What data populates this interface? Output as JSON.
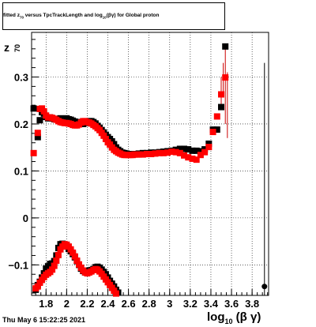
{
  "title": {
    "pre": "fitted  z",
    "sub": "70",
    "mid": "  versus TpcTrackLength and log",
    "sub2": "10",
    "post": "(βγ) for Global proton"
  },
  "timestamp": "Thu May  6 15:22:25 2021",
  "chart_data": {
    "type": "scatter",
    "title": "fitted z70 versus TpcTrackLength and log10(βγ) for Global proton",
    "xlabel": "log10(βγ)",
    "ylabel": "z70",
    "xlim": [
      1.66,
      3.96
    ],
    "ylim": [
      -0.165,
      0.395
    ],
    "grid": true,
    "x_ticks": [
      1.8,
      2.0,
      2.2,
      2.4,
      2.6,
      2.8,
      3.0,
      3.2,
      3.4,
      3.6,
      3.8
    ],
    "x_tick_labels": [
      "1.8",
      "2",
      "2.2",
      "2.4",
      "2.6",
      "2.8",
      "3",
      "3.2",
      "3.4",
      "3.6",
      "3.8"
    ],
    "y_ticks": [
      -0.1,
      0.0,
      0.1,
      0.2,
      0.3
    ],
    "y_tick_labels": [
      "−0.1",
      "0",
      "0.1",
      "0.2",
      "0.3"
    ],
    "series": [
      {
        "color": "#000000",
        "values": [
          [
            1.68,
            0.233
          ],
          [
            1.72,
            0.172
          ],
          [
            1.74,
            0.208
          ],
          [
            1.76,
            0.225
          ],
          [
            1.78,
            0.222
          ],
          [
            1.8,
            0.215
          ],
          [
            1.82,
            0.212
          ],
          [
            1.84,
            0.214
          ],
          [
            1.86,
            0.212
          ],
          [
            1.88,
            0.21
          ],
          [
            1.9,
            0.211
          ],
          [
            1.92,
            0.21
          ],
          [
            1.94,
            0.212
          ],
          [
            1.96,
            0.21
          ],
          [
            1.98,
            0.208
          ],
          [
            2.0,
            0.212
          ],
          [
            2.02,
            0.21
          ],
          [
            2.04,
            0.209
          ],
          [
            2.06,
            0.207
          ],
          [
            2.08,
            0.205
          ],
          [
            2.1,
            0.204
          ],
          [
            2.12,
            0.203
          ],
          [
            2.14,
            0.2
          ],
          [
            2.16,
            0.2
          ],
          [
            2.18,
            0.202
          ],
          [
            2.2,
            0.205
          ],
          [
            2.22,
            0.206
          ],
          [
            2.24,
            0.206
          ],
          [
            2.26,
            0.204
          ],
          [
            2.28,
            0.201
          ],
          [
            2.3,
            0.196
          ],
          [
            2.32,
            0.192
          ],
          [
            2.34,
            0.187
          ],
          [
            2.36,
            0.182
          ],
          [
            2.38,
            0.177
          ],
          [
            2.4,
            0.172
          ],
          [
            2.42,
            0.168
          ],
          [
            2.44,
            0.163
          ],
          [
            2.46,
            0.157
          ],
          [
            2.48,
            0.15
          ],
          [
            2.5,
            0.145
          ],
          [
            2.52,
            0.142
          ],
          [
            2.54,
            0.139
          ],
          [
            2.56,
            0.138
          ],
          [
            2.58,
            0.137
          ],
          [
            2.6,
            0.136
          ],
          [
            2.62,
            0.136
          ],
          [
            2.64,
            0.136
          ],
          [
            2.66,
            0.136
          ],
          [
            2.68,
            0.136
          ],
          [
            2.7,
            0.137
          ],
          [
            2.74,
            0.138
          ],
          [
            2.78,
            0.138
          ],
          [
            2.82,
            0.139
          ],
          [
            2.86,
            0.139
          ],
          [
            2.9,
            0.14
          ],
          [
            2.94,
            0.141
          ],
          [
            2.98,
            0.142
          ],
          [
            3.02,
            0.143
          ],
          [
            3.06,
            0.145
          ],
          [
            3.1,
            0.147
          ],
          [
            3.14,
            0.147
          ],
          [
            3.18,
            0.146
          ],
          [
            3.22,
            0.143
          ],
          [
            3.26,
            0.143
          ],
          [
            3.3,
            0.142
          ],
          [
            3.34,
            0.146
          ],
          [
            3.38,
            0.158
          ],
          [
            3.42,
            0.188
          ],
          [
            3.46,
            0.188
          ],
          [
            3.5,
            0.236
          ],
          [
            3.54,
            0.365
          ],
          [
            1.7,
            -0.153
          ],
          [
            1.72,
            -0.143
          ],
          [
            1.74,
            -0.136
          ],
          [
            1.76,
            -0.127
          ],
          [
            1.78,
            -0.118
          ],
          [
            1.8,
            -0.108
          ],
          [
            1.82,
            -0.103
          ],
          [
            1.84,
            -0.098
          ],
          [
            1.86,
            -0.097
          ],
          [
            1.88,
            -0.092
          ],
          [
            1.9,
            -0.08
          ],
          [
            1.92,
            -0.064
          ],
          [
            1.94,
            -0.056
          ],
          [
            1.96,
            -0.055
          ],
          [
            1.98,
            -0.058
          ],
          [
            2.0,
            -0.06
          ],
          [
            2.02,
            -0.066
          ],
          [
            2.04,
            -0.071
          ],
          [
            2.06,
            -0.077
          ],
          [
            2.08,
            -0.084
          ],
          [
            2.1,
            -0.092
          ],
          [
            2.12,
            -0.1
          ],
          [
            2.14,
            -0.108
          ],
          [
            2.16,
            -0.113
          ],
          [
            2.18,
            -0.116
          ],
          [
            2.2,
            -0.114
          ],
          [
            2.22,
            -0.112
          ],
          [
            2.24,
            -0.111
          ],
          [
            2.26,
            -0.109
          ],
          [
            2.28,
            -0.105
          ],
          [
            2.3,
            -0.104
          ],
          [
            2.32,
            -0.106
          ],
          [
            2.34,
            -0.11
          ],
          [
            2.36,
            -0.115
          ],
          [
            2.38,
            -0.12
          ],
          [
            2.4,
            -0.127
          ],
          [
            2.42,
            -0.134
          ],
          [
            2.44,
            -0.14
          ],
          [
            2.46,
            -0.146
          ],
          [
            2.48,
            -0.153
          ],
          [
            2.5,
            -0.159
          ],
          [
            3.92,
            -0.146
          ]
        ]
      },
      {
        "color": "#ff0000",
        "values": [
          [
            1.68,
            0.138
          ],
          [
            1.72,
            0.181
          ],
          [
            1.74,
            0.232
          ],
          [
            1.76,
            0.233
          ],
          [
            1.78,
            0.227
          ],
          [
            1.8,
            0.218
          ],
          [
            1.82,
            0.214
          ],
          [
            1.84,
            0.214
          ],
          [
            1.86,
            0.213
          ],
          [
            1.88,
            0.211
          ],
          [
            1.9,
            0.209
          ],
          [
            1.92,
            0.206
          ],
          [
            1.94,
            0.204
          ],
          [
            1.96,
            0.203
          ],
          [
            1.98,
            0.202
          ],
          [
            2.0,
            0.202
          ],
          [
            2.02,
            0.201
          ],
          [
            2.04,
            0.2
          ],
          [
            2.06,
            0.198
          ],
          [
            2.08,
            0.197
          ],
          [
            2.1,
            0.197
          ],
          [
            2.12,
            0.199
          ],
          [
            2.14,
            0.203
          ],
          [
            2.16,
            0.206
          ],
          [
            2.18,
            0.206
          ],
          [
            2.2,
            0.204
          ],
          [
            2.22,
            0.203
          ],
          [
            2.24,
            0.201
          ],
          [
            2.26,
            0.198
          ],
          [
            2.28,
            0.195
          ],
          [
            2.3,
            0.191
          ],
          [
            2.32,
            0.187
          ],
          [
            2.34,
            0.181
          ],
          [
            2.36,
            0.175
          ],
          [
            2.38,
            0.168
          ],
          [
            2.4,
            0.161
          ],
          [
            2.42,
            0.156
          ],
          [
            2.44,
            0.15
          ],
          [
            2.46,
            0.145
          ],
          [
            2.48,
            0.142
          ],
          [
            2.5,
            0.139
          ],
          [
            2.52,
            0.137
          ],
          [
            2.54,
            0.135
          ],
          [
            2.56,
            0.134
          ],
          [
            2.58,
            0.134
          ],
          [
            2.6,
            0.134
          ],
          [
            2.62,
            0.134
          ],
          [
            2.64,
            0.134
          ],
          [
            2.66,
            0.135
          ],
          [
            2.68,
            0.135
          ],
          [
            2.7,
            0.135
          ],
          [
            2.74,
            0.135
          ],
          [
            2.78,
            0.136
          ],
          [
            2.82,
            0.136
          ],
          [
            2.86,
            0.137
          ],
          [
            2.9,
            0.138
          ],
          [
            2.94,
            0.138
          ],
          [
            2.98,
            0.139
          ],
          [
            3.02,
            0.141
          ],
          [
            3.06,
            0.14
          ],
          [
            3.1,
            0.138
          ],
          [
            3.14,
            0.133
          ],
          [
            3.18,
            0.129
          ],
          [
            3.22,
            0.126
          ],
          [
            3.26,
            0.124
          ],
          [
            3.3,
            0.134
          ],
          [
            3.34,
            0.14
          ],
          [
            3.38,
            0.151
          ],
          [
            3.42,
            0.183
          ],
          [
            3.46,
            0.216
          ],
          [
            3.5,
            0.263
          ],
          [
            3.54,
            0.299
          ],
          [
            1.7,
            -0.15
          ],
          [
            1.72,
            -0.146
          ],
          [
            1.74,
            -0.138
          ],
          [
            1.76,
            -0.132
          ],
          [
            1.78,
            -0.126
          ],
          [
            1.8,
            -0.121
          ],
          [
            1.82,
            -0.118
          ],
          [
            1.84,
            -0.115
          ],
          [
            1.86,
            -0.11
          ],
          [
            1.88,
            -0.102
          ],
          [
            1.9,
            -0.091
          ],
          [
            1.92,
            -0.079
          ],
          [
            1.94,
            -0.067
          ],
          [
            1.96,
            -0.061
          ],
          [
            1.98,
            -0.056
          ],
          [
            2.0,
            -0.057
          ],
          [
            2.02,
            -0.061
          ],
          [
            2.04,
            -0.067
          ],
          [
            2.06,
            -0.074
          ],
          [
            2.08,
            -0.082
          ],
          [
            2.1,
            -0.091
          ],
          [
            2.12,
            -0.099
          ],
          [
            2.14,
            -0.106
          ],
          [
            2.16,
            -0.112
          ],
          [
            2.18,
            -0.116
          ],
          [
            2.2,
            -0.118
          ],
          [
            2.22,
            -0.116
          ],
          [
            2.24,
            -0.114
          ],
          [
            2.26,
            -0.111
          ],
          [
            2.28,
            -0.109
          ],
          [
            2.3,
            -0.11
          ],
          [
            2.32,
            -0.114
          ],
          [
            2.34,
            -0.119
          ],
          [
            2.36,
            -0.125
          ],
          [
            2.38,
            -0.131
          ],
          [
            2.4,
            -0.137
          ],
          [
            2.42,
            -0.143
          ],
          [
            2.44,
            -0.149
          ],
          [
            2.46,
            -0.155
          ],
          [
            2.48,
            -0.161
          ]
        ]
      }
    ]
  }
}
